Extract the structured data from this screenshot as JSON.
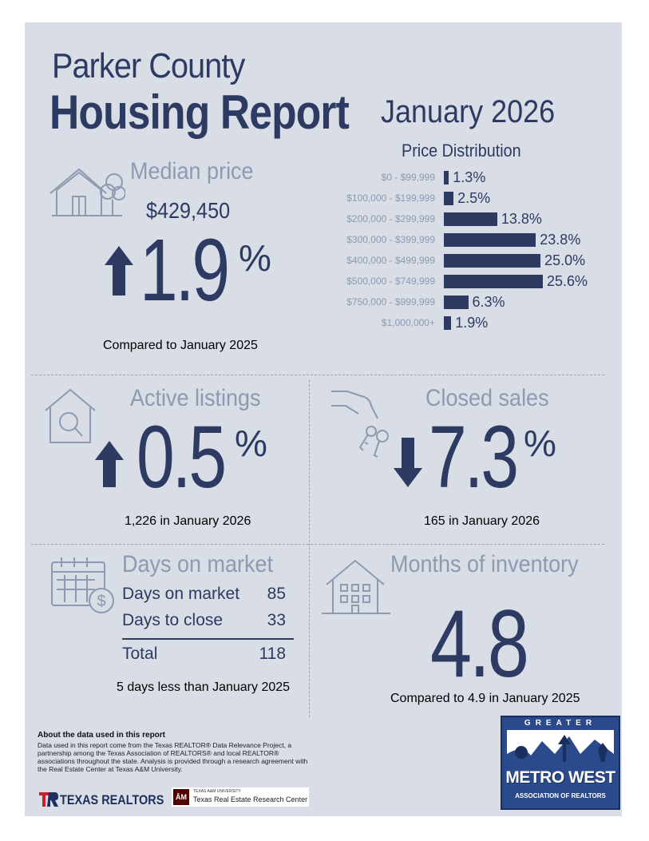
{
  "header": {
    "county": "Parker County",
    "report_title": "Housing Report",
    "period": "January 2026"
  },
  "median_price": {
    "heading": "Median price",
    "price": "$429,450",
    "change": "1.9",
    "unit": "%",
    "direction": "up",
    "comparison": "Compared to January 2025"
  },
  "price_distribution": {
    "title": "Price Distribution",
    "rows": [
      {
        "label": "$0 - $99,999",
        "value": "1.3%",
        "pct": 1.3
      },
      {
        "label": "$100,000 - $199,999",
        "value": "2.5%",
        "pct": 2.5
      },
      {
        "label": "$200,000 - $299,999",
        "value": "13.8%",
        "pct": 13.8
      },
      {
        "label": "$300,000 - $399,999",
        "value": "23.8%",
        "pct": 23.8
      },
      {
        "label": "$400,000 - $499,999",
        "value": "25.0%",
        "pct": 25.0
      },
      {
        "label": "$500,000 - $749,999",
        "value": "25.6%",
        "pct": 25.6
      },
      {
        "label": "$750,000 - $999,999",
        "value": "6.3%",
        "pct": 6.3
      },
      {
        "label": "$1,000,000+",
        "value": "1.9%",
        "pct": 1.9
      }
    ]
  },
  "active_listings": {
    "heading": "Active listings",
    "change": "0.5",
    "unit": "%",
    "direction": "up",
    "detail": "1,226 in January 2026"
  },
  "closed_sales": {
    "heading": "Closed sales",
    "change": "7.3",
    "unit": "%",
    "direction": "down",
    "detail": "165 in January 2026"
  },
  "days_on_market": {
    "heading": "Days on market",
    "rows": [
      {
        "label": "Days on market",
        "value": "85"
      },
      {
        "label": "Days to close",
        "value": "33"
      }
    ],
    "total_label": "Total",
    "total_value": "118",
    "comparison": "5 days less than January 2025"
  },
  "months_inventory": {
    "heading": "Months of inventory",
    "value": "4.8",
    "comparison": "Compared to 4.9 in January 2025"
  },
  "about": {
    "heading": "About the data used in this report",
    "body": "Data used in this report come from the Texas REALTOR® Data Relevance Project, a partnership among the Texas Association of REALTORS® and local REALTOR® associations throughout the state. Analysis is provided through a research agreement with the Real Estate Center at Texas A&M University."
  },
  "logos": {
    "texas_realtors": "TEXAS REALTORS",
    "tamu_small": "TEXAS A&M UNIVERSITY",
    "tamu_center": "Texas Real Estate Research Center",
    "metro_top": "GREATER",
    "metro_main": "METRO WEST",
    "metro_bottom": "ASSOCIATION OF REALTORS"
  },
  "colors": {
    "navy": "#2d3a62",
    "steel": "#8d9ab0",
    "panel": "#d8dde6"
  }
}
